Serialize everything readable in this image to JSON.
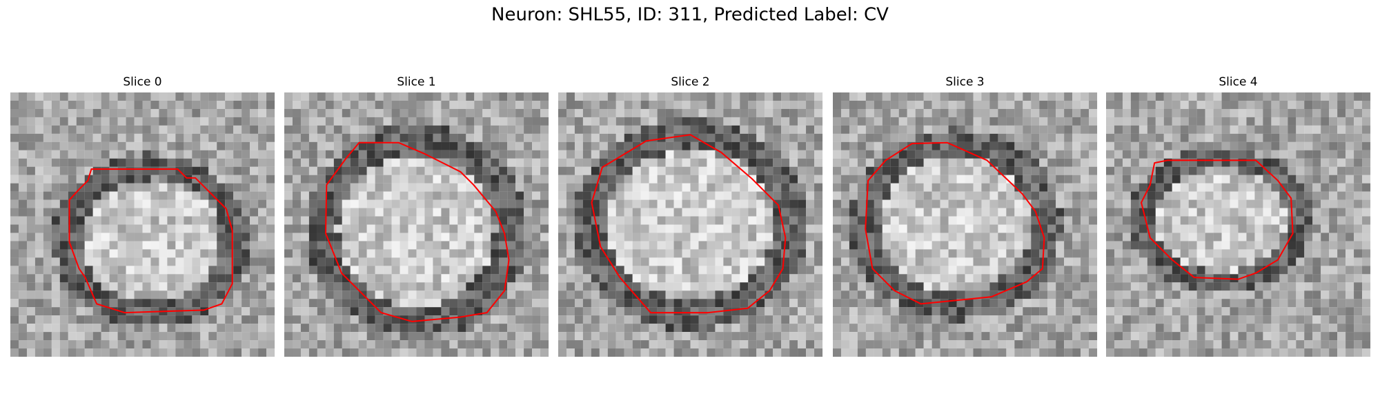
{
  "title": "Neuron: SHL55, ID: 311, Predicted Label: CV",
  "panels": [
    {
      "title": "Slice 0"
    },
    {
      "title": "Slice 1"
    },
    {
      "title": "Slice 2"
    },
    {
      "title": "Slice 3"
    },
    {
      "title": "Slice 4"
    }
  ]
}
